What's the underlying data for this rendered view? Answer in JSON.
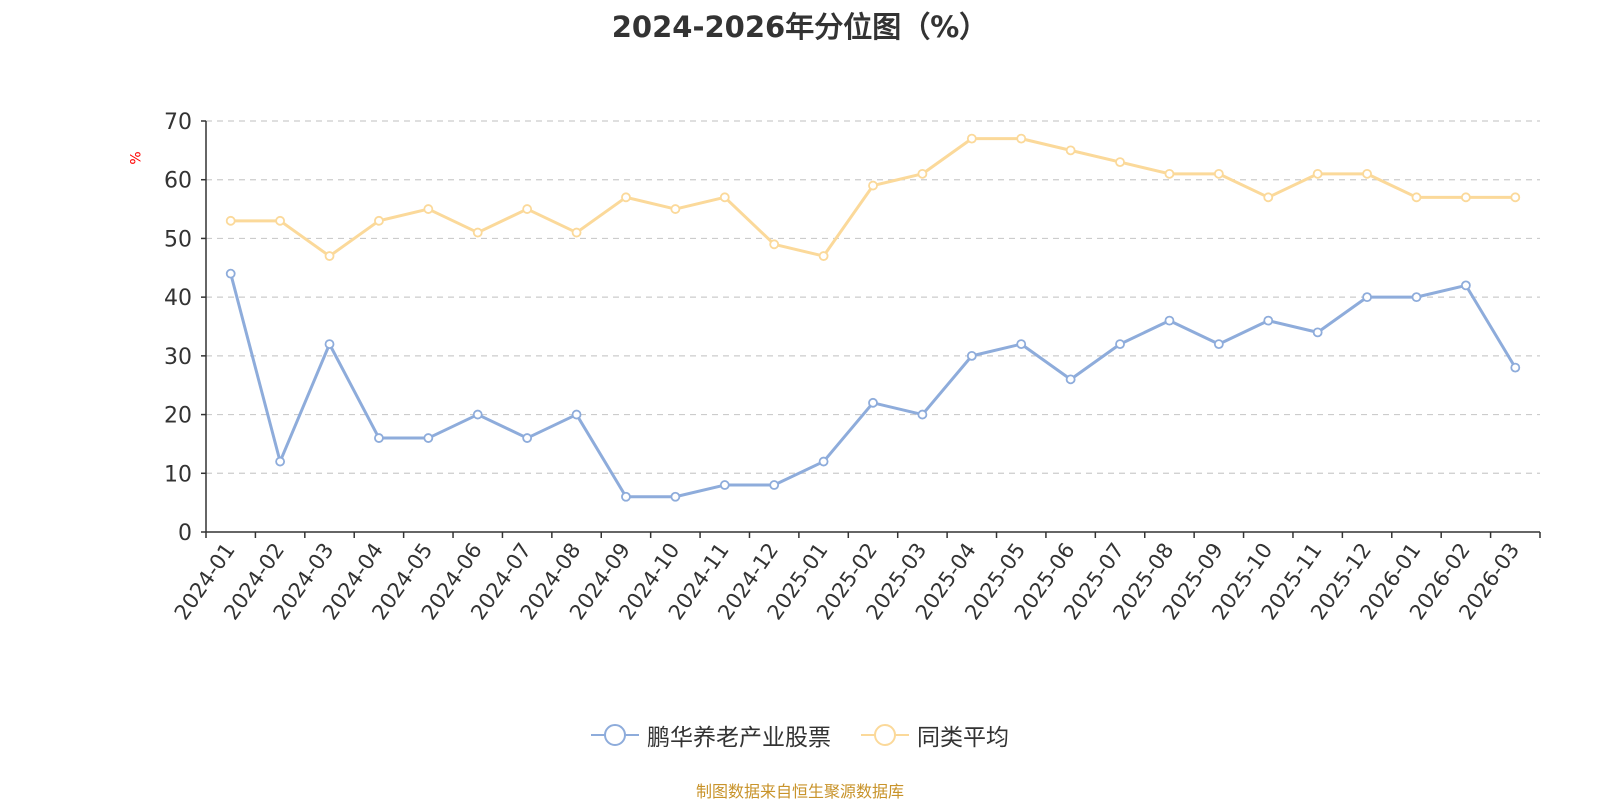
{
  "chart_data": {
    "type": "line",
    "title": "2024-2026年分位图（%）",
    "ylabel": "%",
    "ylim": [
      0,
      70
    ],
    "yticks": [
      0,
      10,
      20,
      30,
      40,
      50,
      60,
      70
    ],
    "grid": true,
    "legend_position": "bottom",
    "categories": [
      "2024-01",
      "2024-02",
      "2024-03",
      "2024-04",
      "2024-05",
      "2024-06",
      "2024-07",
      "2024-08",
      "2024-09",
      "2024-10",
      "2024-11",
      "2024-12",
      "2025-01",
      "2025-02",
      "2025-03",
      "2025-04",
      "2025-05",
      "2025-06",
      "2025-07",
      "2025-08",
      "2025-09",
      "2025-10",
      "2025-11",
      "2025-12",
      "2026-01",
      "2026-02",
      "2026-03"
    ],
    "series": [
      {
        "name": "鹏华养老产业股票",
        "color": "#8eacdb",
        "values": [
          44,
          12,
          32,
          16,
          16,
          20,
          16,
          20,
          6,
          6,
          8,
          8,
          12,
          22,
          20,
          30,
          32,
          26,
          32,
          36,
          32,
          36,
          34,
          40,
          40,
          42,
          28
        ]
      },
      {
        "name": "同类平均",
        "color": "#fbd99a",
        "values": [
          53,
          53,
          47,
          53,
          55,
          51,
          55,
          51,
          57,
          55,
          57,
          49,
          47,
          59,
          61,
          67,
          67,
          65,
          63,
          61,
          61,
          57,
          61,
          61,
          57,
          57,
          57
        ]
      }
    ]
  },
  "source": "制图数据来自恒生聚源数据库"
}
